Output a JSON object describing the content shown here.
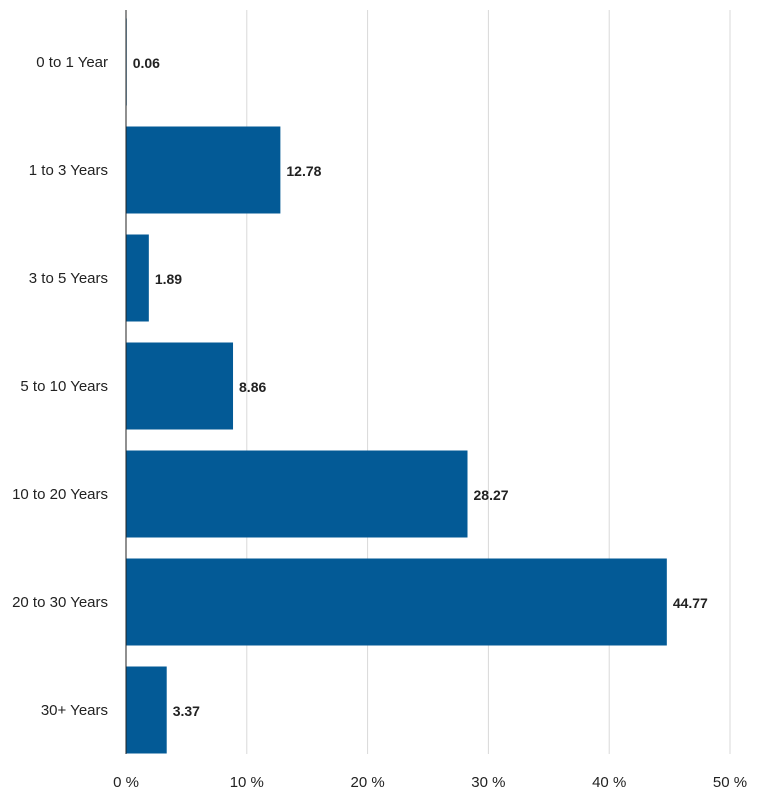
{
  "chart_data": {
    "type": "bar",
    "orientation": "horizontal",
    "title": "",
    "xlabel": "",
    "ylabel": "",
    "categories": [
      "0 to 1 Year",
      "1 to 3 Years",
      "3 to 5 Years",
      "5 to 10 Years",
      "10 to 20 Years",
      "20 to 30 Years",
      "30+ Years"
    ],
    "values": [
      0.06,
      12.78,
      1.89,
      8.86,
      28.27,
      44.77,
      3.37
    ],
    "value_labels": [
      "0.06",
      "12.78",
      "1.89",
      "8.86",
      "28.27",
      "44.77",
      "3.37"
    ],
    "xlim": [
      0,
      50
    ],
    "x_ticks": [
      0,
      10,
      20,
      30,
      40,
      50
    ],
    "x_tick_labels": [
      "0 %",
      "10 %",
      "20 %",
      "30 %",
      "40 %",
      "50 %"
    ],
    "grid": true,
    "legend": "none",
    "bar_color": "#035a96",
    "grid_color": "#d9d9d9"
  }
}
